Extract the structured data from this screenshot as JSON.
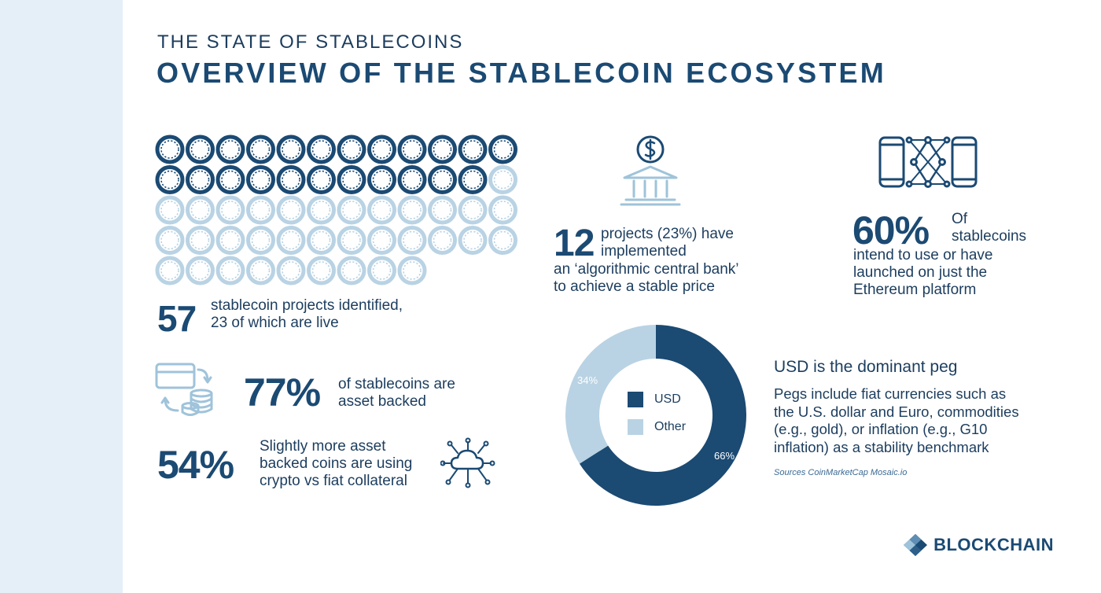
{
  "header": {
    "kicker": "THE STATE OF STABLECOINS",
    "title": "OVERVIEW OF THE STABLECOIN ECOSYSTEM"
  },
  "colors": {
    "navy": "#1b4a73",
    "light_blue": "#b9d3e4",
    "sidebar": "#e4eff7",
    "text": "#1c3d5e"
  },
  "icons": {
    "coin_grid": "coin-icon",
    "bank": "bank-icon",
    "phones": "blockchain-phones-icon",
    "card_coins": "card-to-coins-icon",
    "cloud": "cloud-network-icon",
    "brand": "blockchain-logo-icon"
  },
  "stats": {
    "projects": {
      "number": "57",
      "line1": "stablecoin projects identified,",
      "line2": "23 of which are live"
    },
    "algorithmic": {
      "number": "12",
      "line1": "projects (23%) have",
      "line2": "implemented",
      "line3": "an ‘algorithmic central bank’",
      "line4": "to achieve a stable price"
    },
    "ethereum": {
      "number": "60%",
      "line1": "Of",
      "line2": "stablecoins",
      "line3": "intend to use or have",
      "line4": "launched on just the",
      "line5": "Ethereum platform"
    },
    "asset_backed": {
      "number": "77%",
      "line1": "of stablecoins are",
      "line2": "asset backed"
    },
    "crypto_collateral": {
      "number": "54%",
      "line1": "Slightly more asset",
      "line2": "backed coins are using",
      "line3": "crypto vs fiat collateral"
    }
  },
  "chart_data": [
    {
      "type": "waffle",
      "total": 57,
      "highlighted": 23,
      "rows": [
        12,
        12,
        12,
        12,
        9
      ]
    },
    {
      "type": "pie",
      "donut": true,
      "categories": [
        "USD",
        "Other"
      ],
      "values": [
        66,
        34
      ],
      "value_labels": [
        "66%",
        "34%"
      ],
      "colors": [
        "#1b4a73",
        "#b9d3e4"
      ],
      "legend": "center"
    }
  ],
  "peg": {
    "heading": "USD is the dominant peg",
    "line1": "Pegs include fiat currencies such as",
    "line2": "the U.S. dollar and Euro, commodities",
    "line3": "(e.g., gold), or inflation (e.g., G10",
    "line4": "inflation) as a stability benchmark",
    "source": "Sources CoinMarketCap Mosaic.io"
  },
  "brand": {
    "name": "BLOCKCHAIN"
  }
}
